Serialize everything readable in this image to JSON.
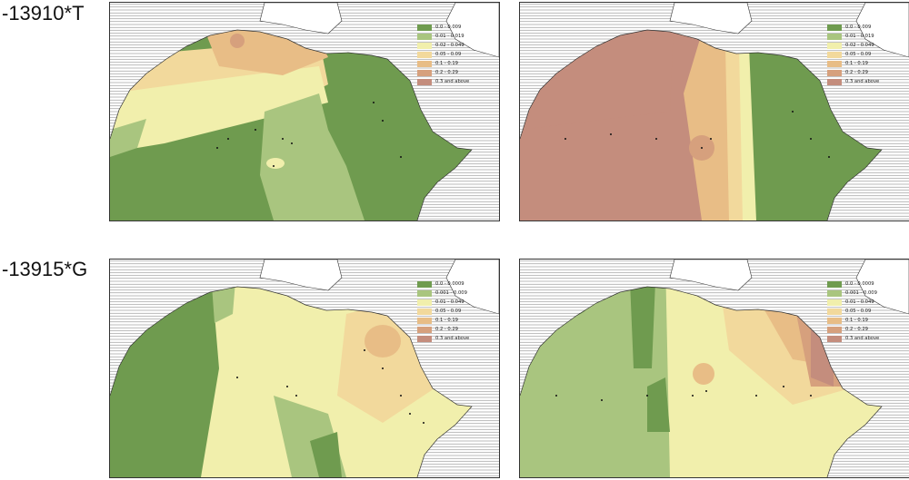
{
  "row_labels": [
    "-13910*T",
    "-13915*G"
  ],
  "legend_colors": [
    "#6f9b4f",
    "#a9c57f",
    "#f1efac",
    "#f2d99c",
    "#e8bd86",
    "#d6a07d",
    "#c48d7d"
  ],
  "legends": {
    "top": [
      "0.0 - 0.009",
      "0.01 - 0.019",
      "0.02 - 0.049",
      "0.05 - 0.09",
      "0.1 - 0.19",
      "0.2 - 0.29",
      "0.3 and above"
    ],
    "bottom": [
      "0.0 - 0.0009",
      "0.001 - 0.009",
      "0.01 - 0.049",
      "0.05 - 0.09",
      "0.1 - 0.19",
      "0.2 - 0.29",
      "0.3 and above"
    ]
  }
}
